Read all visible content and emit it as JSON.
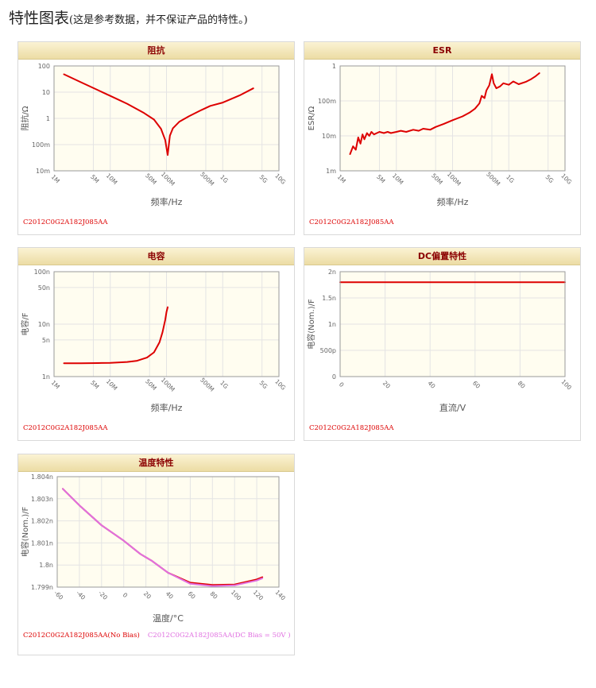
{
  "page": {
    "title": "特性图表",
    "note": "(这是参考数据，并不保证产品的特性。)"
  },
  "chart_data": [
    {
      "id": "impedance",
      "type": "line",
      "title": "阻抗",
      "xlabel": "频率/Hz",
      "ylabel": "阻抗/Ω",
      "xscale": "log",
      "yscale": "log",
      "xlim": [
        1000000,
        10000000000
      ],
      "ylim": [
        0.01,
        100
      ],
      "x_ticks": [
        {
          "v": 1000000,
          "l": "1M"
        },
        {
          "v": 5000000,
          "l": "5M"
        },
        {
          "v": 10000000,
          "l": "10M"
        },
        {
          "v": 50000000,
          "l": "50M"
        },
        {
          "v": 100000000,
          "l": "100M"
        },
        {
          "v": 500000000,
          "l": "500M"
        },
        {
          "v": 1000000000,
          "l": "1G"
        },
        {
          "v": 5000000000,
          "l": "5G"
        },
        {
          "v": 10000000000,
          "l": "10G"
        }
      ],
      "y_ticks": [
        {
          "v": 0.01,
          "l": "10m"
        },
        {
          "v": 0.1,
          "l": "100m"
        },
        {
          "v": 1,
          "l": "1"
        },
        {
          "v": 10,
          "l": "10"
        },
        {
          "v": 100,
          "l": "100"
        }
      ],
      "grid": true,
      "series": [
        {
          "name": "C2012C0G2A182J085AA",
          "color": "#dd0000",
          "x": [
            1500000,
            3000000,
            6000000,
            10000000,
            20000000,
            40000000,
            60000000,
            80000000,
            95000000,
            105000000,
            115000000,
            130000000,
            170000000,
            250000000,
            400000000,
            600000000,
            1000000000,
            2000000000,
            3500000000
          ],
          "y": [
            48,
            24,
            12,
            7.2,
            3.6,
            1.6,
            0.9,
            0.4,
            0.15,
            0.04,
            0.22,
            0.42,
            0.75,
            1.2,
            2.0,
            3.0,
            4.0,
            7.5,
            14
          ]
        }
      ],
      "legend": [
        {
          "text": "C2012C0G2A182J085AA",
          "color": "#dd0000"
        }
      ]
    },
    {
      "id": "esr",
      "type": "line",
      "title": "ESR",
      "xlabel": "频率/Hz",
      "ylabel": "ESR/Ω",
      "xscale": "log",
      "yscale": "log",
      "xlim": [
        1000000,
        10000000000
      ],
      "ylim": [
        0.001,
        1
      ],
      "x_ticks": [
        {
          "v": 1000000,
          "l": "1M"
        },
        {
          "v": 5000000,
          "l": "5M"
        },
        {
          "v": 10000000,
          "l": "10M"
        },
        {
          "v": 50000000,
          "l": "50M"
        },
        {
          "v": 100000000,
          "l": "100M"
        },
        {
          "v": 500000000,
          "l": "500M"
        },
        {
          "v": 1000000000,
          "l": "1G"
        },
        {
          "v": 5000000000,
          "l": "5G"
        },
        {
          "v": 10000000000,
          "l": "10G"
        }
      ],
      "y_ticks": [
        {
          "v": 0.001,
          "l": "1m"
        },
        {
          "v": 0.01,
          "l": "10m"
        },
        {
          "v": 0.1,
          "l": "100m"
        },
        {
          "v": 1,
          "l": "1"
        }
      ],
      "grid": true,
      "series": [
        {
          "name": "C2012C0G2A182J085AA",
          "color": "#dd0000",
          "x": [
            1500000,
            1700000,
            1900000,
            2100000,
            2300000,
            2500000,
            2700000,
            3000000,
            3300000,
            3600000,
            4000000,
            5000000,
            6000000,
            7000000,
            8000000,
            10000000,
            12000000,
            15000000,
            20000000,
            25000000,
            30000000,
            40000000,
            50000000,
            70000000,
            100000000,
            150000000,
            200000000,
            250000000,
            300000000,
            330000000,
            370000000,
            400000000,
            450000000,
            500000000,
            540000000,
            600000000,
            700000000,
            800000000,
            1000000000,
            1200000000,
            1500000000,
            2000000000,
            2500000000,
            3000000000,
            3500000000
          ],
          "y": [
            0.003,
            0.005,
            0.004,
            0.009,
            0.006,
            0.011,
            0.008,
            0.012,
            0.01,
            0.013,
            0.011,
            0.013,
            0.012,
            0.013,
            0.012,
            0.013,
            0.014,
            0.013,
            0.015,
            0.014,
            0.016,
            0.015,
            0.018,
            0.022,
            0.028,
            0.036,
            0.046,
            0.06,
            0.085,
            0.14,
            0.12,
            0.2,
            0.28,
            0.58,
            0.32,
            0.23,
            0.26,
            0.32,
            0.29,
            0.36,
            0.3,
            0.35,
            0.42,
            0.51,
            0.62
          ]
        }
      ],
      "legend": [
        {
          "text": "C2012C0G2A182J085AA",
          "color": "#dd0000"
        }
      ]
    },
    {
      "id": "capacitance",
      "type": "line",
      "title": "电容",
      "xlabel": "频率/Hz",
      "ylabel": "电容/F",
      "xscale": "log",
      "yscale": "log",
      "xlim": [
        1000000,
        10000000000
      ],
      "ylim": [
        1e-09,
        1e-07
      ],
      "x_ticks": [
        {
          "v": 1000000,
          "l": "1M"
        },
        {
          "v": 5000000,
          "l": "5M"
        },
        {
          "v": 10000000,
          "l": "10M"
        },
        {
          "v": 50000000,
          "l": "50M"
        },
        {
          "v": 100000000,
          "l": "100M"
        },
        {
          "v": 500000000,
          "l": "500M"
        },
        {
          "v": 1000000000,
          "l": "1G"
        },
        {
          "v": 5000000000,
          "l": "5G"
        },
        {
          "v": 10000000000,
          "l": "10G"
        }
      ],
      "y_ticks": [
        {
          "v": 1e-09,
          "l": "1n"
        },
        {
          "v": 5e-09,
          "l": "5n"
        },
        {
          "v": 1e-08,
          "l": "10n"
        },
        {
          "v": 5e-08,
          "l": "50n"
        },
        {
          "v": 1e-07,
          "l": "100n"
        }
      ],
      "grid": true,
      "series": [
        {
          "name": "C2012C0G2A182J085AA",
          "color": "#dd0000",
          "x": [
            1500000,
            3000000,
            6000000,
            10000000,
            20000000,
            30000000,
            45000000,
            60000000,
            75000000,
            85000000,
            95000000,
            100000000,
            105000000
          ],
          "y": [
            1.8e-09,
            1.8e-09,
            1.81e-09,
            1.83e-09,
            1.9e-09,
            2e-09,
            2.3e-09,
            2.9e-09,
            4.5e-09,
            7e-09,
            1.2e-08,
            1.7e-08,
            2.1e-08
          ]
        }
      ],
      "legend": [
        {
          "text": "C2012C0G2A182J085AA",
          "color": "#dd0000"
        }
      ]
    },
    {
      "id": "dc-bias",
      "type": "line",
      "title": "DC偏置特性",
      "xlabel": "直流/V",
      "ylabel": "电容(Nom.)/F",
      "xscale": "linear",
      "yscale": "linear",
      "xlim": [
        0,
        100
      ],
      "ylim": [
        0,
        2e-09
      ],
      "x_ticks": [
        {
          "v": 0,
          "l": "0"
        },
        {
          "v": 20,
          "l": "20"
        },
        {
          "v": 40,
          "l": "40"
        },
        {
          "v": 60,
          "l": "60"
        },
        {
          "v": 80,
          "l": "80"
        },
        {
          "v": 100,
          "l": "100"
        }
      ],
      "y_ticks": [
        {
          "v": 0,
          "l": "0"
        },
        {
          "v": 5e-10,
          "l": "500p"
        },
        {
          "v": 1e-09,
          "l": "1n"
        },
        {
          "v": 1.5e-09,
          "l": "1.5n"
        },
        {
          "v": 2e-09,
          "l": "2n"
        }
      ],
      "grid": true,
      "series": [
        {
          "name": "C2012C0G2A182J085AA",
          "color": "#dd0000",
          "x": [
            0,
            100
          ],
          "y": [
            1.8e-09,
            1.8e-09
          ]
        }
      ],
      "legend": [
        {
          "text": "C2012C0G2A182J085AA",
          "color": "#dd0000"
        }
      ]
    },
    {
      "id": "temperature",
      "type": "line",
      "title": "温度特性",
      "xlabel": "温度/°C",
      "ylabel": "电容(Nom.)/F",
      "xscale": "linear",
      "yscale": "linear",
      "xlim": [
        -60,
        140
      ],
      "ylim": [
        1.799,
        1.804
      ],
      "y_unit_note": "values in nF",
      "x_ticks": [
        {
          "v": -60,
          "l": "-60"
        },
        {
          "v": -40,
          "l": "-40"
        },
        {
          "v": -20,
          "l": "-20"
        },
        {
          "v": 0,
          "l": "0"
        },
        {
          "v": 20,
          "l": "20"
        },
        {
          "v": 40,
          "l": "40"
        },
        {
          "v": 60,
          "l": "60"
        },
        {
          "v": 80,
          "l": "80"
        },
        {
          "v": 100,
          "l": "100"
        },
        {
          "v": 120,
          "l": "120"
        },
        {
          "v": 140,
          "l": "140"
        }
      ],
      "y_ticks": [
        {
          "v": 1.799,
          "l": "1.799n"
        },
        {
          "v": 1.8,
          "l": "1.8n"
        },
        {
          "v": 1.801,
          "l": "1.801n"
        },
        {
          "v": 1.802,
          "l": "1.802n"
        },
        {
          "v": 1.803,
          "l": "1.803n"
        },
        {
          "v": 1.804,
          "l": "1.804n"
        }
      ],
      "grid": true,
      "series": [
        {
          "name": "C2012C0G2A182J085AA(No Bias)",
          "color": "#dd0000",
          "x": [
            -55,
            -40,
            -20,
            0,
            15,
            20,
            25,
            40,
            60,
            80,
            100,
            120,
            125
          ],
          "y": [
            1.80345,
            1.8027,
            1.8018,
            1.8011,
            1.8005,
            1.80035,
            1.8002,
            1.79965,
            1.7992,
            1.7991,
            1.79912,
            1.79935,
            1.79945
          ]
        },
        {
          "name": "C2012C0G2A182J085AA(DC Bias = 50V )",
          "color": "#e070e0",
          "x": [
            -55,
            -40,
            -20,
            0,
            15,
            20,
            25,
            40,
            60,
            80,
            100,
            120,
            125
          ],
          "y": [
            1.80345,
            1.8027,
            1.8018,
            1.8011,
            1.8005,
            1.80035,
            1.8002,
            1.79965,
            1.79915,
            1.79905,
            1.79908,
            1.7993,
            1.7994
          ]
        }
      ],
      "legend": [
        {
          "text": "C2012C0G2A182J085AA(No Bias)",
          "color": "#dd0000"
        },
        {
          "text": "C2012C0G2A182J085AA(DC Bias = 50V )",
          "color": "#e070e0"
        }
      ]
    }
  ]
}
